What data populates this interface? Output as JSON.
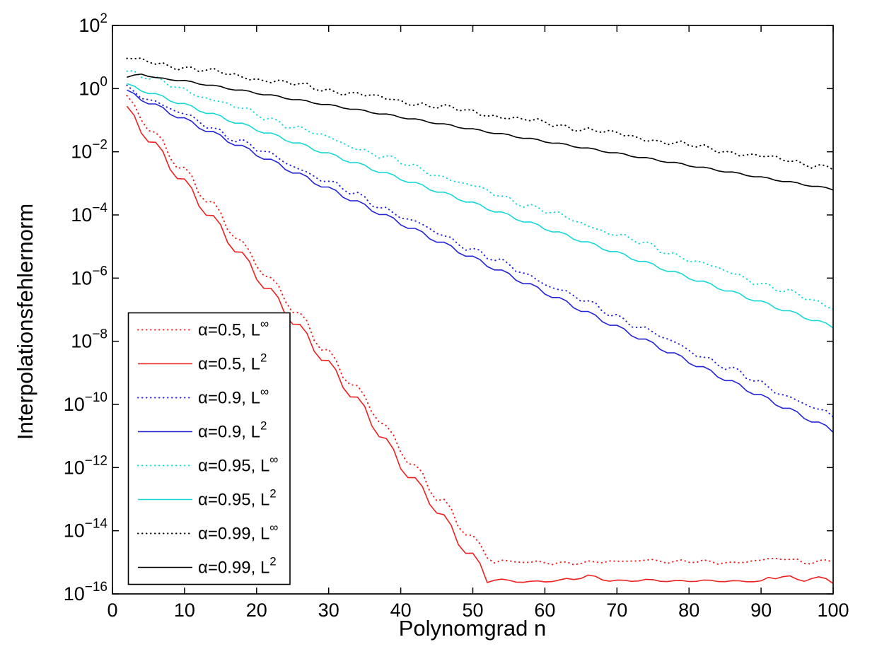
{
  "figure": {
    "background": "#ffffff",
    "axes_color": "#000000"
  },
  "chart_data": {
    "type": "line",
    "title": "",
    "xlabel": "Polynomgrad n",
    "ylabel": "Interpolationsfehlernorm",
    "grid": false,
    "x_axis": {
      "min": 0,
      "max": 100,
      "ticks": [
        0,
        10,
        20,
        30,
        40,
        50,
        60,
        70,
        80,
        90,
        100
      ]
    },
    "y_axis": {
      "scale": "log10",
      "min_exponent": -16,
      "max_exponent": 2,
      "tick_exponents": [
        2,
        0,
        -2,
        -4,
        -6,
        -8,
        -10,
        -12,
        -14,
        -16
      ],
      "tick_base": "10"
    },
    "x_data_range": [
      2,
      100
    ],
    "legend": {
      "position": "lower-left",
      "border_color": "#000000",
      "background": "#ffffff"
    },
    "series": [
      {
        "id": "alpha-0.5-Linf",
        "label_base": "α=0.5, L",
        "label_sup": "∞",
        "alpha": 0.5,
        "norm": "L-infinity",
        "color": "#ee2020",
        "style": "dotted",
        "wiggle_log10": 0.13,
        "jitter_log10": 0.05,
        "points_log10": [
          [
            2,
            -0.35
          ],
          [
            5,
            -1.2
          ],
          [
            10,
            -2.62
          ],
          [
            15,
            -4.05
          ],
          [
            20,
            -5.5
          ],
          [
            25,
            -6.95
          ],
          [
            30,
            -8.4
          ],
          [
            35,
            -9.85
          ],
          [
            40,
            -11.4
          ],
          [
            45,
            -12.9
          ],
          [
            50,
            -14.3
          ],
          [
            53,
            -14.9
          ],
          [
            56,
            -15.0
          ],
          [
            60,
            -15.02
          ],
          [
            65,
            -15.0
          ],
          [
            70,
            -15.0
          ],
          [
            74,
            -14.9
          ],
          [
            78,
            -15.0
          ],
          [
            82,
            -14.98
          ],
          [
            86,
            -15.0
          ],
          [
            90,
            -14.95
          ],
          [
            93,
            -14.88
          ],
          [
            96,
            -14.98
          ],
          [
            100,
            -14.95
          ]
        ]
      },
      {
        "id": "alpha-0.5-L2",
        "label_base": "α=0.5, L",
        "label_sup": "2",
        "alpha": 0.5,
        "norm": "L2",
        "color": "#ee2020",
        "style": "solid",
        "wiggle_log10": 0.14,
        "jitter_log10": 0,
        "points_log10": [
          [
            2,
            -0.7
          ],
          [
            5,
            -1.55
          ],
          [
            10,
            -3.0
          ],
          [
            15,
            -4.45
          ],
          [
            20,
            -5.9
          ],
          [
            25,
            -7.32
          ],
          [
            30,
            -8.75
          ],
          [
            35,
            -10.2
          ],
          [
            40,
            -11.9
          ],
          [
            45,
            -13.3
          ],
          [
            48,
            -14.3
          ],
          [
            50,
            -14.85
          ],
          [
            52,
            -15.5
          ],
          [
            55,
            -15.6
          ],
          [
            58,
            -15.62
          ],
          [
            62,
            -15.58
          ],
          [
            66,
            -15.44
          ],
          [
            70,
            -15.6
          ],
          [
            74,
            -15.56
          ],
          [
            78,
            -15.6
          ],
          [
            82,
            -15.58
          ],
          [
            86,
            -15.6
          ],
          [
            90,
            -15.6
          ],
          [
            93,
            -15.4
          ],
          [
            95,
            -15.62
          ],
          [
            97,
            -15.45
          ],
          [
            100,
            -15.62
          ]
        ]
      },
      {
        "id": "alpha-0.9-Linf",
        "label_base": "α=0.9, L",
        "label_sup": "∞",
        "alpha": 0.9,
        "norm": "L-infinity",
        "color": "#2424d8",
        "style": "dotted",
        "wiggle_log10": 0.05,
        "jitter_log10": 0.07,
        "points_log10": [
          [
            2,
            0.01
          ],
          [
            10,
            -0.84
          ],
          [
            20,
            -1.9
          ],
          [
            30,
            -2.96
          ],
          [
            40,
            -4.03
          ],
          [
            50,
            -5.09
          ],
          [
            60,
            -6.15
          ],
          [
            70,
            -7.21
          ],
          [
            80,
            -8.27
          ],
          [
            90,
            -9.34
          ],
          [
            100,
            -10.4
          ]
        ]
      },
      {
        "id": "alpha-0.9-L2",
        "label_base": "α=0.9, L",
        "label_sup": "2",
        "alpha": 0.9,
        "norm": "L2",
        "color": "#2424d8",
        "style": "solid",
        "wiggle_log10": 0.055,
        "jitter_log10": 0,
        "points_log10": [
          [
            2,
            -0.1
          ],
          [
            10,
            -0.98
          ],
          [
            20,
            -2.07
          ],
          [
            30,
            -3.17
          ],
          [
            40,
            -4.26
          ],
          [
            50,
            -5.36
          ],
          [
            60,
            -6.45
          ],
          [
            70,
            -7.55
          ],
          [
            80,
            -8.64
          ],
          [
            90,
            -9.74
          ],
          [
            100,
            -10.83
          ]
        ]
      },
      {
        "id": "alpha-0.95-Linf",
        "label_base": "α=0.95, L",
        "label_sup": "∞",
        "alpha": 0.95,
        "norm": "L-infinity",
        "color": "#16d8d8",
        "style": "dotted",
        "wiggle_log10": 0.035,
        "jitter_log10": 0.08,
        "points_log10": [
          [
            2,
            0.57
          ],
          [
            10,
            -0.04
          ],
          [
            20,
            -0.81
          ],
          [
            30,
            -1.57
          ],
          [
            40,
            -2.34
          ],
          [
            50,
            -3.1
          ],
          [
            60,
            -3.87
          ],
          [
            70,
            -4.63
          ],
          [
            80,
            -5.4
          ],
          [
            90,
            -6.16
          ],
          [
            100,
            -6.93
          ]
        ]
      },
      {
        "id": "alpha-0.95-L2",
        "label_base": "α=0.95, L",
        "label_sup": "2",
        "alpha": 0.95,
        "norm": "L2",
        "color": "#16d8d8",
        "style": "solid",
        "wiggle_log10": 0.04,
        "jitter_log10": 0,
        "points_log10": [
          [
            2,
            0.12
          ],
          [
            10,
            -0.51
          ],
          [
            20,
            -1.29
          ],
          [
            30,
            -2.07
          ],
          [
            40,
            -2.85
          ],
          [
            50,
            -3.63
          ],
          [
            60,
            -4.42
          ],
          [
            70,
            -5.2
          ],
          [
            80,
            -5.98
          ],
          [
            90,
            -6.76
          ],
          [
            100,
            -7.54
          ]
        ]
      },
      {
        "id": "alpha-0.99-Linf",
        "label_base": "α=0.99, L",
        "label_sup": "∞",
        "alpha": 0.99,
        "norm": "L-infinity",
        "color": "#000000",
        "style": "dotted",
        "wiggle_log10": 0.015,
        "jitter_log10": 0.09,
        "points_log10": [
          [
            2,
            0.95
          ],
          [
            10,
            0.67
          ],
          [
            20,
            0.32
          ],
          [
            30,
            -0.04
          ],
          [
            40,
            -0.39
          ],
          [
            50,
            -0.74
          ],
          [
            60,
            -1.09
          ],
          [
            70,
            -1.44
          ],
          [
            80,
            -1.8
          ],
          [
            90,
            -2.15
          ],
          [
            100,
            -2.5
          ]
        ]
      },
      {
        "id": "alpha-0.99-L2",
        "label_base": "α=0.99, L",
        "label_sup": "2",
        "alpha": 0.99,
        "norm": "L2",
        "color": "#000000",
        "style": "solid",
        "wiggle_log10": 0.02,
        "jitter_log10": 0,
        "points_log10": [
          [
            2,
            0.34
          ],
          [
            4,
            0.48
          ],
          [
            6,
            0.33
          ],
          [
            8,
            0.3
          ],
          [
            10,
            0.24
          ],
          [
            20,
            -0.14
          ],
          [
            30,
            -0.52
          ],
          [
            40,
            -0.9
          ],
          [
            50,
            -1.29
          ],
          [
            60,
            -1.67
          ],
          [
            70,
            -2.05
          ],
          [
            80,
            -2.43
          ],
          [
            90,
            -2.81
          ],
          [
            100,
            -3.19
          ]
        ]
      }
    ]
  }
}
